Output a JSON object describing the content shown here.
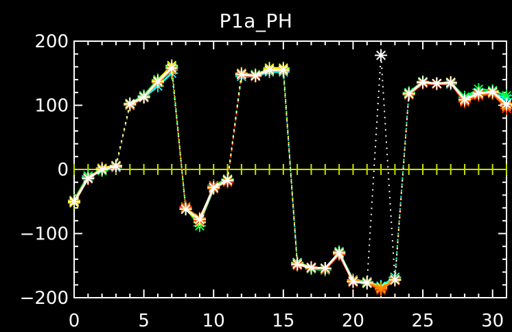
{
  "chart_data": {
    "type": "line",
    "title": "P1a_PH",
    "xlabel": "",
    "ylabel": "",
    "xlim": [
      0,
      31
    ],
    "ylim": [
      -200,
      200
    ],
    "xticks": [
      "0",
      "5",
      "10",
      "15",
      "20",
      "25",
      "30"
    ],
    "yticks": [
      "200",
      "100",
      "0",
      "-100",
      "-200"
    ],
    "zero_line_color": "#c8e000",
    "dotted_links": true,
    "series": [
      {
        "color": "#00ffff",
        "values": [
          -50,
          -12,
          0,
          3,
          100,
          112,
          130,
          150,
          -58,
          -83,
          -30,
          -18,
          145,
          145,
          152,
          152,
          -145,
          -153,
          -155,
          -130,
          -172,
          -175,
          -182,
          -168,
          118,
          135,
          133,
          133,
          112,
          120,
          120,
          110
        ]
      },
      {
        "color": "#00ff44",
        "values": [
          -48,
          -10,
          -2,
          6,
          103,
          115,
          140,
          160,
          -60,
          -88,
          -25,
          -15,
          148,
          148,
          156,
          156,
          -148,
          -155,
          -157,
          -128,
          -175,
          -178,
          -185,
          -170,
          120,
          137,
          133,
          135,
          113,
          125,
          123,
          115
        ]
      },
      {
        "color": "#ffff00",
        "values": [
          -52,
          -14,
          2,
          6,
          102,
          113,
          138,
          162,
          -62,
          -82,
          -28,
          -16,
          150,
          146,
          158,
          158,
          -146,
          -153,
          -154,
          -131,
          -174,
          -176,
          -184,
          -172,
          118,
          136,
          134,
          136,
          108,
          118,
          120,
          100
        ]
      },
      {
        "color": "#ff2200",
        "values": [
          -50,
          -15,
          0,
          4,
          101,
          112,
          136,
          158,
          -58,
          -80,
          -26,
          -20,
          147,
          145,
          155,
          155,
          -150,
          -152,
          -156,
          -133,
          -176,
          -177,
          -188,
          -171,
          116,
          134,
          133,
          134,
          105,
          115,
          118,
          95
        ]
      },
      {
        "color": "#ff8800",
        "values": [
          -49,
          -13,
          1,
          5,
          100,
          112,
          135,
          155,
          -60,
          -76,
          -30,
          -18,
          149,
          147,
          154,
          154,
          -147,
          -154,
          -155,
          -132,
          -173,
          -176,
          -186,
          -173,
          117,
          135,
          134,
          135,
          107,
          117,
          119,
          98
        ]
      },
      {
        "color": "#ffffff",
        "values": [
          -50,
          -14,
          0,
          5,
          102,
          113,
          137,
          158,
          -62,
          -78,
          -28,
          -17,
          148,
          146,
          155,
          155,
          -148,
          -153,
          -154,
          -130,
          -175,
          -177,
          178,
          -172,
          118,
          136,
          134,
          135,
          109,
          119,
          121,
          102
        ]
      }
    ]
  }
}
